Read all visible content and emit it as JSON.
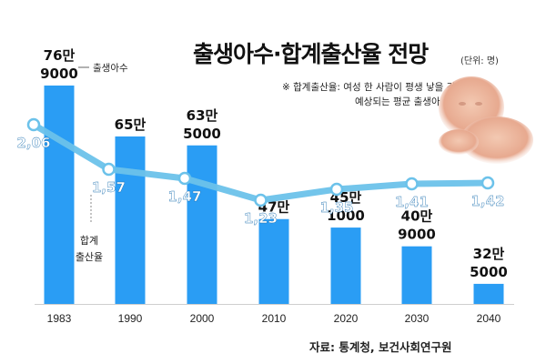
{
  "title": "출생아수·합계출산율 전망",
  "unit": "(단위: 명)",
  "note": {
    "line1": "※ 합계출산율: 여성 한 사람이 평생 낳을 것으로",
    "line2": "예상되는 평균 출생아 수"
  },
  "source": "자료: 통계청, 보건사회연구원",
  "colors": {
    "bar": "#2a9df4",
    "line": "#6cc2ea",
    "point_fill": "#ffffff",
    "rate_label": "#ffffff",
    "bar_label": "#111111",
    "axis": "#cfcfcf"
  },
  "chart_data": {
    "type": "bar",
    "categories": [
      "1983",
      "1990",
      "2000",
      "2010",
      "2020",
      "2030",
      "2040"
    ],
    "series": [
      {
        "name": "출생아수",
        "type": "bar",
        "values": [
          769000,
          655000,
          635000,
          470000,
          451000,
          409000,
          325000
        ],
        "labels": [
          [
            "76만",
            "9000"
          ],
          [
            "65만",
            ""
          ],
          [
            "63만",
            "5000"
          ],
          [
            "47만",
            ""
          ],
          [
            "45만",
            "1000"
          ],
          [
            "40만",
            "9000"
          ],
          [
            "32만",
            "5000"
          ]
        ]
      },
      {
        "name": "합계출산율",
        "type": "line",
        "values": [
          2.06,
          1.57,
          1.47,
          1.23,
          1.35,
          1.41,
          1.42
        ],
        "labels": [
          "2,06",
          "1,57",
          "1,47",
          "1,23",
          "1,35",
          "1,41",
          "1,42"
        ]
      }
    ],
    "legend": {
      "bars_label": "출생아수",
      "line_label": [
        "합계",
        "출산율"
      ]
    }
  }
}
